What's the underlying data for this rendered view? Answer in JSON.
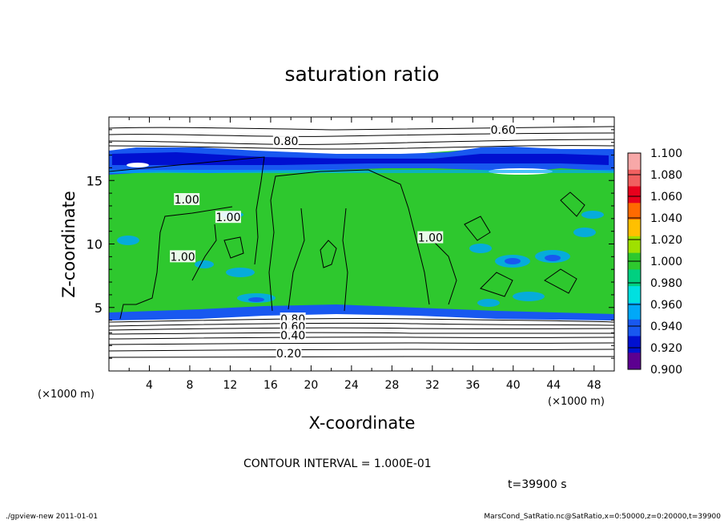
{
  "chart_data": {
    "type": "heatmap",
    "title": "saturation ratio",
    "xlabel": "X-coordinate",
    "ylabel": "Z-coordinate",
    "x_unit": "(×1000 m)",
    "y_unit": "(×1000 m)",
    "xlim": [
      0,
      50
    ],
    "ylim": [
      0,
      20
    ],
    "x_ticks": [
      4,
      8,
      12,
      16,
      20,
      24,
      28,
      32,
      36,
      40,
      44,
      48
    ],
    "y_ticks": [
      5,
      10,
      15
    ],
    "contour_labels": [
      {
        "text": "0.60",
        "x": 39,
        "z": 19.0
      },
      {
        "text": "0.80",
        "x": 17.5,
        "z": 18.1
      },
      {
        "text": "1.00",
        "x": 7.7,
        "z": 13.5
      },
      {
        "text": "1.00",
        "x": 11.8,
        "z": 12.1
      },
      {
        "text": "1.00",
        "x": 31.8,
        "z": 10.5
      },
      {
        "text": "1.00",
        "x": 7.3,
        "z": 9.0
      },
      {
        "text": "0.80",
        "x": 18.2,
        "z": 4.1
      },
      {
        "text": "0.60",
        "x": 18.2,
        "z": 3.5
      },
      {
        "text": "0.40",
        "x": 18.2,
        "z": 2.8
      },
      {
        "text": "0.20",
        "x": 17.8,
        "z": 1.4
      }
    ],
    "colorbar": {
      "labels": [
        "1.100",
        "1.080",
        "1.060",
        "1.040",
        "1.020",
        "1.000",
        "0.980",
        "0.960",
        "0.940",
        "0.920",
        "0.900"
      ],
      "colors": [
        "#f7a8a8",
        "#f06060",
        "#e8001c",
        "#ff6a00",
        "#ffc000",
        "#9fe000",
        "#2ec82e",
        "#00d080",
        "#00e0e0",
        "#00a8f8",
        "#1858f0",
        "#0010d0",
        "#5c0090"
      ]
    },
    "contour_interval_text": "CONTOUR INTERVAL = 1.000E-01",
    "time_text": "t=39900 s"
  },
  "footer": {
    "left": "./gpview-new  2011-01-01",
    "right": "MarsCond_SatRatio.nc@SatRatio,x=0:50000,z=0:20000,t=39900"
  }
}
